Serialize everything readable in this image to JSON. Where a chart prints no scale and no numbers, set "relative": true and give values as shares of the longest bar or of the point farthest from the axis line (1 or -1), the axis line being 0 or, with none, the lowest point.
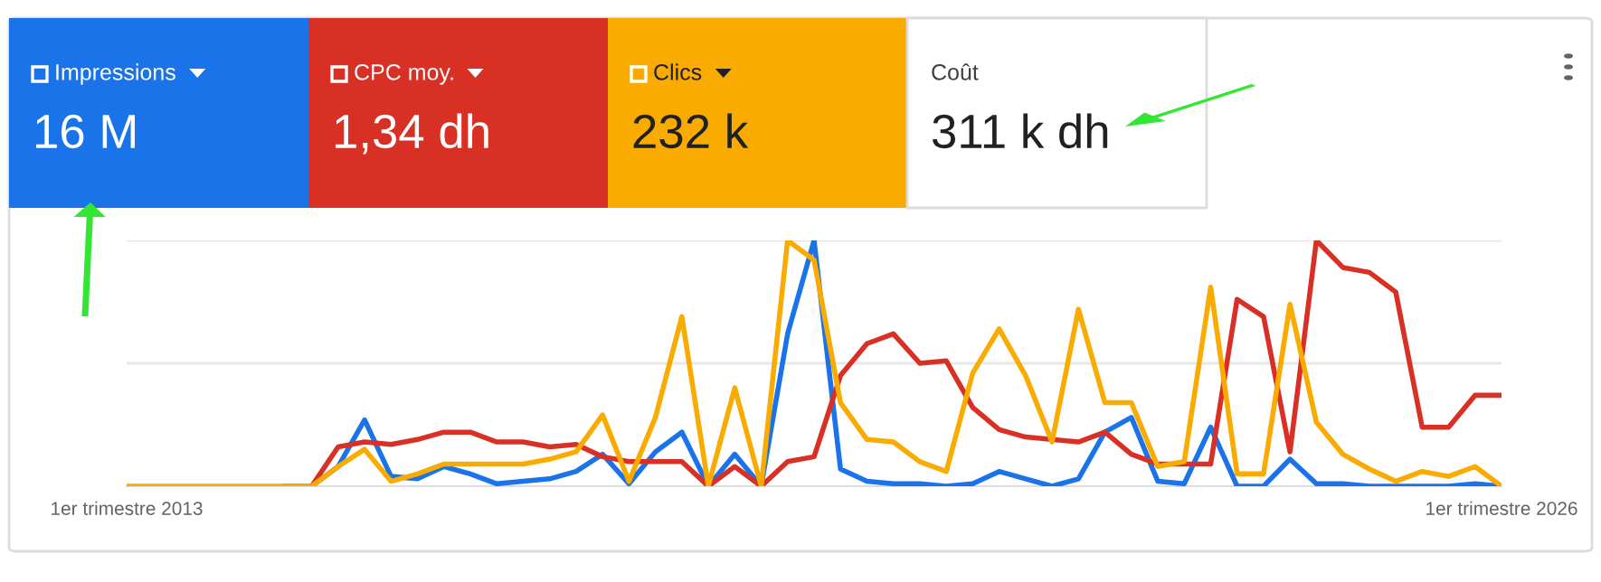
{
  "chart_data": {
    "type": "line",
    "relative": true,
    "ref_lines": [
      {
        "axis": "y",
        "value": 0.5,
        "color": "#e8e8e8"
      },
      {
        "axis": "y",
        "value": 1,
        "color": "#e8e8e8"
      }
    ],
    "legend": "top left",
    "marker": "none",
    "line_style": "solid",
    "categories": [
      "1er trimestre 2013",
      null,
      null,
      null,
      null,
      null,
      null,
      null,
      null,
      null,
      null,
      null,
      null,
      null,
      null,
      null,
      null,
      null,
      null,
      null,
      null,
      null,
      null,
      null,
      null,
      null,
      null,
      null,
      null,
      null,
      null,
      null,
      null,
      null,
      null,
      null,
      null,
      null,
      null,
      null,
      null,
      null,
      null,
      null,
      null,
      null,
      null,
      null,
      null,
      null,
      null,
      null,
      "1er trimestre 2026"
    ],
    "series": [
      {
        "name": "Impressions",
        "color": "#1a73e8",
        "values": [
          null,
          null,
          null,
          null,
          null,
          null,
          null,
          0,
          0.08,
          0.27,
          0.04,
          0.03,
          0.08,
          0.05,
          0.01,
          0.02,
          0.03,
          0.06,
          0.13,
          0.01,
          0.14,
          0.22,
          0,
          0.13,
          0,
          0.62,
          1,
          0.07,
          0.02,
          0.01,
          0.01,
          0,
          0.01,
          0.06,
          0.03,
          0,
          0.03,
          0.22,
          0.28,
          0.02,
          0.01,
          0.24,
          0,
          0,
          0.11,
          0.01,
          0.01,
          0,
          0,
          0,
          0,
          0.01,
          0
        ]
      },
      {
        "name": "CPC moy.",
        "color": "#d93025",
        "values": [
          null,
          null,
          null,
          null,
          null,
          null,
          0,
          0,
          0.16,
          0.18,
          0.17,
          0.19,
          0.22,
          0.22,
          0.18,
          0.18,
          0.16,
          0.17,
          0.12,
          0.1,
          0.1,
          0.1,
          0,
          0.08,
          0,
          0.1,
          0.12,
          0.45,
          0.58,
          0.62,
          0.5,
          0.51,
          0.32,
          0.23,
          0.2,
          0.19,
          0.18,
          0.22,
          0.13,
          0.09,
          0.09,
          0.09,
          0.76,
          0.69,
          0.14,
          1,
          0.89,
          0.87,
          0.79,
          0.24,
          0.24,
          0.37,
          0.37
        ]
      },
      {
        "name": "Clics",
        "color": "#f9ab00",
        "values": [
          0,
          0,
          0,
          0,
          0,
          0,
          0,
          0,
          0.08,
          0.15,
          0.02,
          0.05,
          0.09,
          0.09,
          0.09,
          0.09,
          0.11,
          0.14,
          0.29,
          0.02,
          0.28,
          0.69,
          0,
          0.4,
          0,
          1,
          0.92,
          0.34,
          0.19,
          0.18,
          0.1,
          0.06,
          0.46,
          0.64,
          0.45,
          0.18,
          0.72,
          0.34,
          0.34,
          0.08,
          0.1,
          0.81,
          0.05,
          0.05,
          0.74,
          0.26,
          0.13,
          0.07,
          0.02,
          0.06,
          0.04,
          0.08,
          0
        ]
      }
    ],
    "annotations": [
      "16 M",
      "1,34 dh",
      "232 k",
      "Coût",
      "311 k dh"
    ]
  }
}
